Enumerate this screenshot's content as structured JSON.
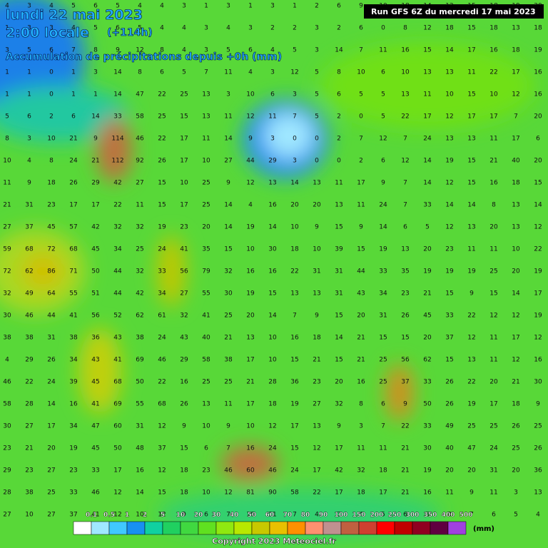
{
  "header": {
    "date": "lundi 22 mai 2023",
    "time": "2:00 locale",
    "lead": "(+114h)",
    "subtitle": "Accumulation de précipitations depuis +0h (mm)",
    "run": "Run GFS 6Z du mercredi 17 mai 2023"
  },
  "map": {
    "grid": [
      [
        4,
        3,
        4,
        5,
        6,
        5,
        4,
        4,
        3,
        1,
        3,
        1,
        3,
        1,
        2,
        6,
        9,
        10,
        18,
        14,
        12,
        15,
        18,
        19,
        20
      ],
      [
        1,
        3,
        3,
        4,
        5,
        6,
        5,
        4,
        4,
        3,
        4,
        3,
        2,
        2,
        3,
        2,
        6,
        0,
        8,
        12,
        18,
        15,
        18,
        13,
        18
      ],
      [
        3,
        5,
        6,
        7,
        8,
        9,
        12,
        8,
        4,
        3,
        5,
        6,
        4,
        5,
        3,
        14,
        7,
        11,
        16,
        15,
        14,
        17,
        16,
        18,
        19
      ],
      [
        1,
        1,
        0,
        1,
        3,
        14,
        8,
        6,
        5,
        7,
        11,
        4,
        3,
        12,
        5,
        8,
        10,
        6,
        10,
        13,
        13,
        11,
        22,
        17,
        16
      ],
      [
        1,
        1,
        0,
        1,
        1,
        14,
        47,
        22,
        25,
        13,
        3,
        10,
        6,
        3,
        5,
        6,
        5,
        5,
        13,
        11,
        10,
        15,
        10,
        12,
        16
      ],
      [
        5,
        6,
        2,
        6,
        14,
        33,
        58,
        25,
        15,
        13,
        11,
        12,
        11,
        7,
        5,
        2,
        0,
        5,
        22,
        17,
        12,
        17,
        17,
        7,
        20
      ],
      [
        8,
        3,
        10,
        21,
        9,
        114,
        46,
        22,
        17,
        11,
        14,
        9,
        3,
        0,
        0,
        2,
        7,
        12,
        7,
        24,
        13,
        13,
        11,
        17,
        6
      ],
      [
        10,
        4,
        8,
        24,
        21,
        112,
        92,
        26,
        17,
        10,
        27,
        44,
        29,
        3,
        0,
        0,
        2,
        6,
        12,
        14,
        19,
        15,
        21,
        40,
        20
      ],
      [
        11,
        9,
        18,
        26,
        29,
        42,
        27,
        15,
        10,
        25,
        9,
        12,
        13,
        14,
        13,
        11,
        17,
        9,
        7,
        14,
        12,
        15,
        16,
        18,
        15
      ],
      [
        21,
        31,
        23,
        17,
        17,
        22,
        11,
        15,
        17,
        25,
        14,
        4,
        16,
        20,
        20,
        13,
        11,
        24,
        7,
        33,
        14,
        14,
        8,
        13,
        14
      ],
      [
        27,
        37,
        45,
        57,
        42,
        32,
        32,
        19,
        23,
        20,
        14,
        19,
        14,
        10,
        9,
        15,
        9,
        14,
        6,
        5,
        12,
        13,
        20,
        13,
        12
      ],
      [
        59,
        68,
        72,
        68,
        45,
        34,
        25,
        24,
        41,
        35,
        15,
        10,
        30,
        18,
        10,
        39,
        15,
        19,
        13,
        20,
        23,
        11,
        11,
        10,
        22
      ],
      [
        72,
        62,
        86,
        71,
        50,
        44,
        32,
        33,
        56,
        79,
        32,
        16,
        16,
        22,
        31,
        31,
        44,
        33,
        35,
        19,
        19,
        19,
        25,
        20,
        19
      ],
      [
        32,
        49,
        64,
        55,
        51,
        44,
        42,
        34,
        27,
        55,
        30,
        19,
        15,
        13,
        13,
        31,
        43,
        34,
        23,
        21,
        15,
        9,
        15,
        14,
        17
      ],
      [
        30,
        46,
        44,
        41,
        56,
        52,
        62,
        61,
        32,
        41,
        25,
        20,
        14,
        7,
        9,
        15,
        20,
        31,
        26,
        45,
        33,
        22,
        12,
        12,
        19
      ],
      [
        38,
        38,
        31,
        38,
        36,
        43,
        38,
        24,
        43,
        40,
        21,
        13,
        10,
        16,
        18,
        14,
        21,
        15,
        15,
        20,
        37,
        12,
        11,
        17,
        12
      ],
      [
        4,
        29,
        26,
        34,
        43,
        41,
        69,
        46,
        29,
        58,
        38,
        17,
        10,
        15,
        21,
        15,
        21,
        25,
        56,
        62,
        15,
        13,
        11,
        12,
        16
      ],
      [
        46,
        22,
        24,
        39,
        45,
        68,
        50,
        22,
        16,
        25,
        25,
        21,
        28,
        36,
        23,
        20,
        16,
        25,
        37,
        33,
        26,
        22,
        20,
        21,
        30
      ],
      [
        58,
        28,
        14,
        16,
        41,
        69,
        55,
        68,
        26,
        13,
        11,
        17,
        18,
        19,
        27,
        32,
        8,
        6,
        9,
        50,
        26,
        19,
        17,
        18,
        9
      ],
      [
        30,
        27,
        17,
        34,
        47,
        60,
        31,
        12,
        9,
        10,
        9,
        10,
        12,
        17,
        13,
        9,
        3,
        7,
        22,
        33,
        49,
        25,
        25,
        26,
        25
      ],
      [
        23,
        21,
        20,
        19,
        45,
        50,
        48,
        37,
        15,
        6,
        7,
        16,
        24,
        15,
        12,
        17,
        11,
        11,
        21,
        30,
        40,
        47,
        24,
        25,
        26
      ],
      [
        29,
        23,
        27,
        23,
        33,
        17,
        16,
        12,
        18,
        23,
        46,
        60,
        46,
        24,
        17,
        42,
        32,
        18,
        21,
        19,
        20,
        20,
        31,
        20,
        36
      ],
      [
        28,
        38,
        25,
        33,
        46,
        12,
        14,
        15,
        18,
        10,
        12,
        81,
        90,
        58,
        22,
        17,
        18,
        17,
        21,
        16,
        11,
        9,
        11,
        3,
        13
      ],
      [
        27,
        10,
        27,
        37,
        41,
        12,
        10,
        12,
        9,
        6,
        7,
        10,
        11,
        7,
        4,
        3,
        4,
        5,
        6,
        6,
        8,
        7,
        6,
        5,
        4
      ]
    ]
  },
  "legend": {
    "labels": [
      "0.1",
      "0.5",
      "1",
      "2",
      "5",
      "10",
      "20",
      "30",
      "40",
      "50",
      "60",
      "70",
      "80",
      "90",
      "100",
      "150",
      "200",
      "250",
      "300",
      "350",
      "400",
      "500"
    ],
    "colors": [
      "#ffffff",
      "#a0e8ff",
      "#40c8ff",
      "#1890f0",
      "#10d0a0",
      "#20d060",
      "#40d840",
      "#60e020",
      "#90e810",
      "#b8e800",
      "#c8c800",
      "#e8c000",
      "#ff9000",
      "#ff9070",
      "#c09090",
      "#c06040",
      "#d04030",
      "#ff0000",
      "#c00000",
      "#900020",
      "#600040",
      "#a040e0"
    ],
    "unit": "(mm)"
  },
  "footer": {
    "copyright": "Copyright 2023 Meteociel.fr"
  }
}
